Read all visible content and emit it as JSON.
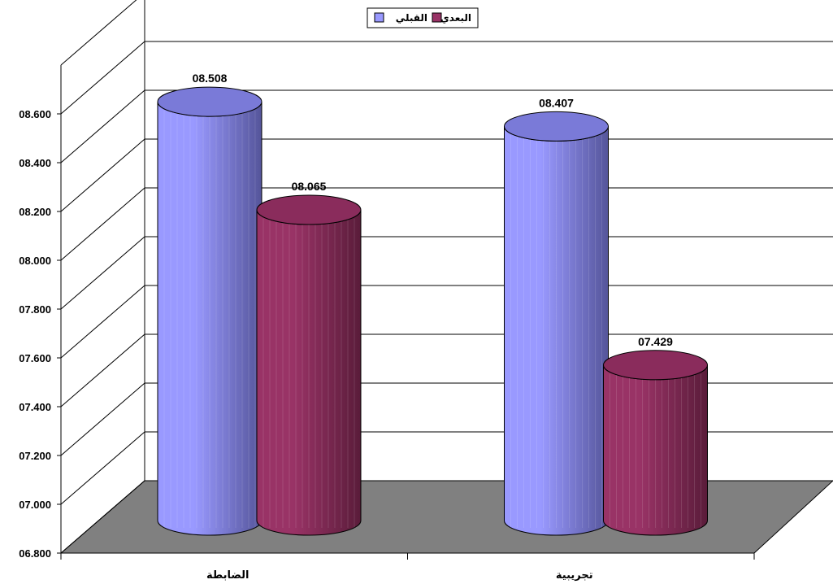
{
  "chart_data": {
    "type": "bar",
    "style": "3d-cylinder",
    "categories": [
      "الضابطة",
      "تجريبية"
    ],
    "series": [
      {
        "name": "القبلي",
        "values": [
          8.508,
          8.407
        ],
        "labels": [
          "08.508",
          "08.407"
        ]
      },
      {
        "name": "البعدي",
        "values": [
          8.065,
          7.429
        ],
        "labels": [
          "08.065",
          "07.429"
        ]
      }
    ],
    "y_ticks": [
      "06.800",
      "07.000",
      "07.200",
      "07.400",
      "07.600",
      "07.800",
      "08.000",
      "08.200",
      "08.400",
      "08.600"
    ],
    "ylim": [
      6.8,
      8.6
    ],
    "grid": true,
    "legend_position": "top-center"
  },
  "colors": {
    "series_1_front": "#9999ff",
    "series_1_back": "#55559a",
    "series_1_top": "#7a7ad8",
    "series_2_front": "#993366",
    "series_2_back": "#5a1c3a",
    "series_2_top": "#8a2c5c",
    "floor": "#808080",
    "grid": "#000000"
  }
}
